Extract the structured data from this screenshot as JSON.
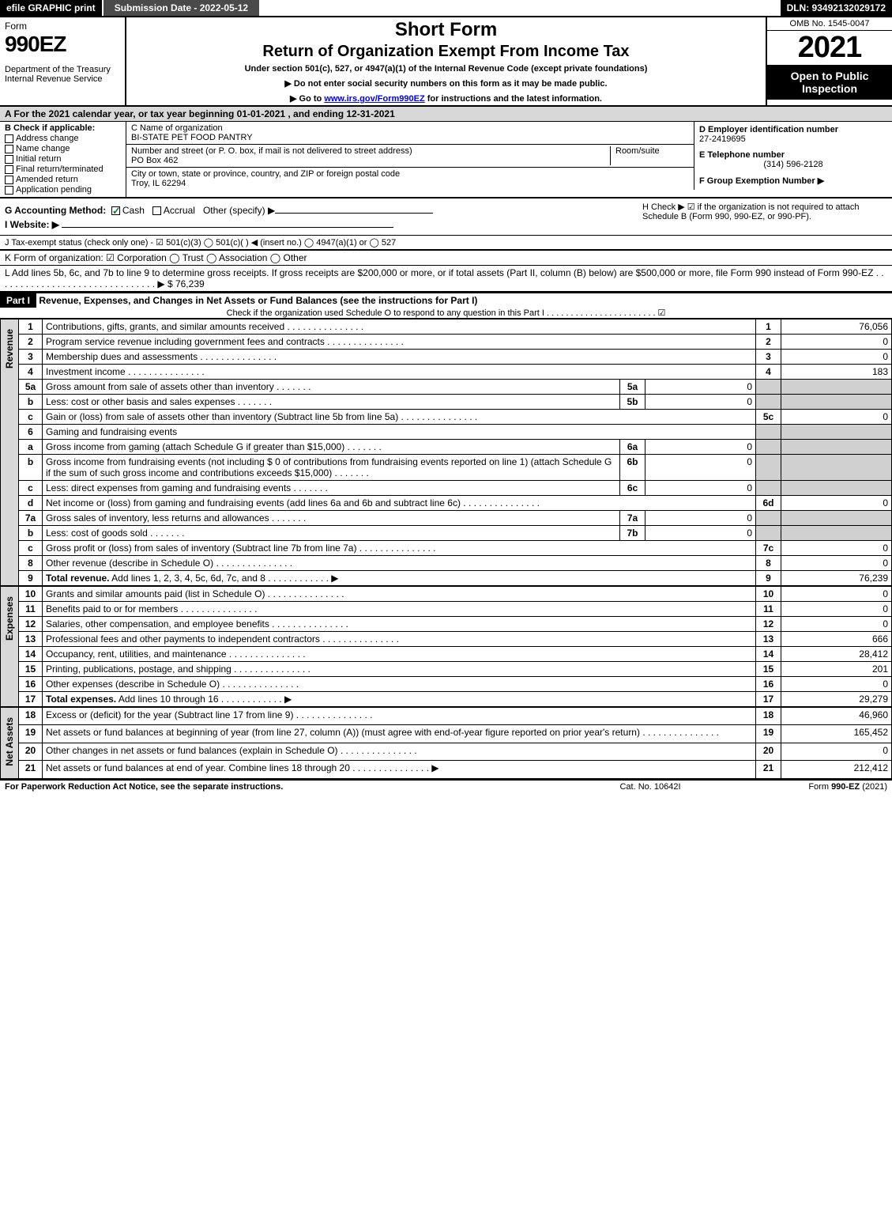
{
  "topbar": {
    "efile": "efile GRAPHIC print",
    "submission": "Submission Date - 2022-05-12",
    "dln": "DLN: 93492132029172"
  },
  "header": {
    "form_word": "Form",
    "form_num": "990EZ",
    "dept": "Department of the Treasury\nInternal Revenue Service",
    "title1": "Short Form",
    "title2": "Return of Organization Exempt From Income Tax",
    "under": "Under section 501(c), 527, or 4947(a)(1) of the Internal Revenue Code (except private foundations)",
    "instr1": "▶ Do not enter social security numbers on this form as it may be made public.",
    "instr2_pre": "▶ Go to ",
    "instr2_link": "www.irs.gov/Form990EZ",
    "instr2_post": " for instructions and the latest information.",
    "omb": "OMB No. 1545-0047",
    "year": "2021",
    "open": "Open to Public Inspection"
  },
  "A": "A  For the 2021 calendar year, or tax year beginning 01-01-2021 , and ending 12-31-2021",
  "B": {
    "label": "B  Check if applicable:",
    "items": [
      "Address change",
      "Name change",
      "Initial return",
      "Final return/terminated",
      "Amended return",
      "Application pending"
    ]
  },
  "C": {
    "name_label": "C Name of organization",
    "name": "BI-STATE PET FOOD PANTRY",
    "street_label": "Number and street (or P. O. box, if mail is not delivered to street address)",
    "street": "PO Box 462",
    "room_label": "Room/suite",
    "city_label": "City or town, state or province, country, and ZIP or foreign postal code",
    "city": "Troy, IL  62294"
  },
  "D": {
    "label": "D Employer identification number",
    "value": "27-2419695"
  },
  "E": {
    "label": "E Telephone number",
    "value": "(314) 596-2128"
  },
  "F": {
    "label": "F Group Exemption Number ▶"
  },
  "G": {
    "label": "G Accounting Method:",
    "cash": "Cash",
    "accrual": "Accrual",
    "other": "Other (specify) ▶"
  },
  "H": "H  Check ▶ ☑ if the organization is not required to attach Schedule B (Form 990, 990-EZ, or 990-PF).",
  "I": "I Website: ▶",
  "J": "J Tax-exempt status (check only one) - ☑ 501(c)(3)  ◯ 501(c)(  ) ◀ (insert no.)  ◯ 4947(a)(1) or  ◯ 527",
  "K": "K Form of organization:  ☑ Corporation  ◯ Trust  ◯ Association  ◯ Other",
  "L": {
    "text": "L Add lines 5b, 6c, and 7b to line 9 to determine gross receipts. If gross receipts are $200,000 or more, or if total assets (Part II, column (B) below) are $500,000 or more, file Form 990 instead of Form 990-EZ . . . . . . . . . . . . . . . . . . . . . . . . . . . . . . . ▶",
    "value": "$ 76,239"
  },
  "partI": {
    "bar": "Part I",
    "title": "Revenue, Expenses, and Changes in Net Assets or Fund Balances (see the instructions for Part I)",
    "sub": "Check if the organization used Schedule O to respond to any question in this Part I . . . . . . . . . . . . . . . . . . . . . . . ☑"
  },
  "sections": {
    "revenue": "Revenue",
    "expenses": "Expenses",
    "netassets": "Net Assets"
  },
  "rows": [
    {
      "n": "1",
      "desc": "Contributions, gifts, grants, and similar amounts received",
      "code": "1",
      "val": "76,056"
    },
    {
      "n": "2",
      "desc": "Program service revenue including government fees and contracts",
      "code": "2",
      "val": "0"
    },
    {
      "n": "3",
      "desc": "Membership dues and assessments",
      "code": "3",
      "val": "0"
    },
    {
      "n": "4",
      "desc": "Investment income",
      "code": "4",
      "val": "183"
    },
    {
      "n": "5a",
      "desc": "Gross amount from sale of assets other than inventory",
      "sub": "5a",
      "subval": "0"
    },
    {
      "n": "b",
      "desc": "Less: cost or other basis and sales expenses",
      "sub": "5b",
      "subval": "0"
    },
    {
      "n": "c",
      "desc": "Gain or (loss) from sale of assets other than inventory (Subtract line 5b from line 5a)",
      "code": "5c",
      "val": "0"
    },
    {
      "n": "6",
      "desc": "Gaming and fundraising events"
    },
    {
      "n": "a",
      "desc": "Gross income from gaming (attach Schedule G if greater than $15,000)",
      "sub": "6a",
      "subval": "0"
    },
    {
      "n": "b",
      "desc": "Gross income from fundraising events (not including $ 0          of contributions from fundraising events reported on line 1) (attach Schedule G if the sum of such gross income and contributions exceeds $15,000)",
      "sub": "6b",
      "subval": "0"
    },
    {
      "n": "c",
      "desc": "Less: direct expenses from gaming and fundraising events",
      "sub": "6c",
      "subval": "0"
    },
    {
      "n": "d",
      "desc": "Net income or (loss) from gaming and fundraising events (add lines 6a and 6b and subtract line 6c)",
      "code": "6d",
      "val": "0"
    },
    {
      "n": "7a",
      "desc": "Gross sales of inventory, less returns and allowances",
      "sub": "7a",
      "subval": "0"
    },
    {
      "n": "b",
      "desc": "Less: cost of goods sold",
      "sub": "7b",
      "subval": "0"
    },
    {
      "n": "c",
      "desc": "Gross profit or (loss) from sales of inventory (Subtract line 7b from line 7a)",
      "code": "7c",
      "val": "0"
    },
    {
      "n": "8",
      "desc": "Other revenue (describe in Schedule O)",
      "code": "8",
      "val": "0"
    },
    {
      "n": "9",
      "desc": "Total revenue. Add lines 1, 2, 3, 4, 5c, 6d, 7c, and 8",
      "code": "9",
      "val": "76,239",
      "bold": true,
      "arrow": true
    }
  ],
  "exp_rows": [
    {
      "n": "10",
      "desc": "Grants and similar amounts paid (list in Schedule O)",
      "code": "10",
      "val": "0"
    },
    {
      "n": "11",
      "desc": "Benefits paid to or for members",
      "code": "11",
      "val": "0"
    },
    {
      "n": "12",
      "desc": "Salaries, other compensation, and employee benefits",
      "code": "12",
      "val": "0"
    },
    {
      "n": "13",
      "desc": "Professional fees and other payments to independent contractors",
      "code": "13",
      "val": "666"
    },
    {
      "n": "14",
      "desc": "Occupancy, rent, utilities, and maintenance",
      "code": "14",
      "val": "28,412"
    },
    {
      "n": "15",
      "desc": "Printing, publications, postage, and shipping",
      "code": "15",
      "val": "201"
    },
    {
      "n": "16",
      "desc": "Other expenses (describe in Schedule O)",
      "code": "16",
      "val": "0"
    },
    {
      "n": "17",
      "desc": "Total expenses. Add lines 10 through 16",
      "code": "17",
      "val": "29,279",
      "bold": true,
      "arrow": true
    }
  ],
  "na_rows": [
    {
      "n": "18",
      "desc": "Excess or (deficit) for the year (Subtract line 17 from line 9)",
      "code": "18",
      "val": "46,960"
    },
    {
      "n": "19",
      "desc": "Net assets or fund balances at beginning of year (from line 27, column (A)) (must agree with end-of-year figure reported on prior year's return)",
      "code": "19",
      "val": "165,452"
    },
    {
      "n": "20",
      "desc": "Other changes in net assets or fund balances (explain in Schedule O)",
      "code": "20",
      "val": "0"
    },
    {
      "n": "21",
      "desc": "Net assets or fund balances at end of year. Combine lines 18 through 20",
      "code": "21",
      "val": "212,412",
      "arrow": true
    }
  ],
  "footer": {
    "left": "For Paperwork Reduction Act Notice, see the separate instructions.",
    "center": "Cat. No. 10642I",
    "right_pre": "Form ",
    "right_bold": "990-EZ",
    "right_post": " (2021)"
  },
  "colors": {
    "black": "#000000",
    "grey_bg": "#d8d8d8",
    "cell_grey": "#d0d0d0",
    "link": "#0000ee",
    "check_green": "#1a7a2e"
  }
}
